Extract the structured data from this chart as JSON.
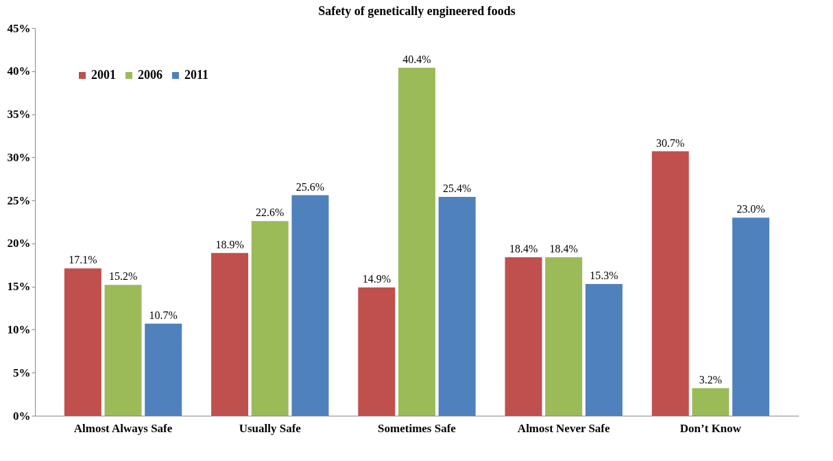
{
  "chart_data": {
    "type": "bar",
    "title": "Safety of genetically engineered foods",
    "categories": [
      "Almost Always Safe",
      "Usually Safe",
      "Sometimes Safe",
      "Almost Never Safe",
      "Don’t Know"
    ],
    "series": [
      {
        "name": "2001",
        "color": "#c0504d",
        "values": [
          17.1,
          18.9,
          14.9,
          18.4,
          30.7
        ],
        "value_labels": [
          "17.1%",
          "18.9%",
          "14.9%",
          "18.4%",
          "30.7%"
        ]
      },
      {
        "name": "2006",
        "color": "#9bbb59",
        "values": [
          15.2,
          22.6,
          40.4,
          18.4,
          3.2
        ],
        "value_labels": [
          "15.2%",
          "22.6%",
          "40.4%",
          "18.4%",
          "3.2%"
        ]
      },
      {
        "name": "2011",
        "color": "#4f81bd",
        "values": [
          10.7,
          25.6,
          25.4,
          15.3,
          23.0
        ],
        "value_labels": [
          "10.7%",
          "25.6%",
          "25.4%",
          "15.3%",
          "23.0%"
        ]
      }
    ],
    "ylim": [
      0,
      45
    ],
    "yticks": [
      {
        "value": 0,
        "label": "0%"
      },
      {
        "value": 5,
        "label": "5%"
      },
      {
        "value": 10,
        "label": "10%"
      },
      {
        "value": 15,
        "label": "15%"
      },
      {
        "value": 20,
        "label": "20%"
      },
      {
        "value": 25,
        "label": "25%"
      },
      {
        "value": 30,
        "label": "30%"
      },
      {
        "value": 35,
        "label": "35%"
      },
      {
        "value": 40,
        "label": "40%"
      },
      {
        "value": 45,
        "label": "45%"
      }
    ],
    "legend": "top left",
    "grid": false
  }
}
